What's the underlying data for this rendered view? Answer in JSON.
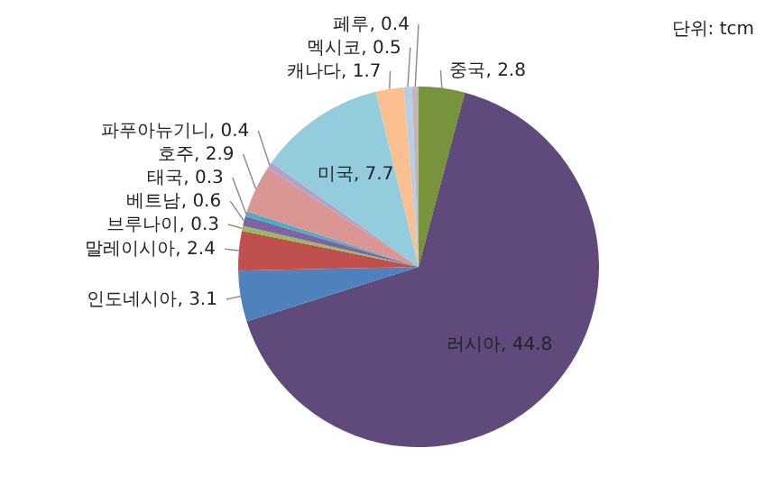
{
  "chart_data": {
    "type": "pie",
    "categories": [
      "중국",
      "러시아",
      "인도네시아",
      "말레이시아",
      "브루나이",
      "베트남",
      "태국",
      "호주",
      "파푸아뉴기니",
      "미국",
      "캐나다",
      "멕시코",
      "페루"
    ],
    "values": [
      2.8,
      44.8,
      3.1,
      2.4,
      0.3,
      0.6,
      0.3,
      2.9,
      0.4,
      7.7,
      1.7,
      0.5,
      0.4
    ],
    "value_labels": [
      ", 2.8",
      ", 44.8",
      ", 3.1",
      ", 2.4",
      ", 0.3",
      ", 0.6",
      ", 0.3",
      ", 2.9",
      ", 0.4",
      ", 7.7",
      ", 1.7",
      ", 0.5",
      ", 0.4"
    ],
    "colors": [
      "#77933c",
      "#604a7b",
      "#4f81bd",
      "#c0504d",
      "#9bbb59",
      "#8064a2",
      "#4bacc6",
      "#d99694",
      "#b3a2c7",
      "#93cddd",
      "#fac090",
      "#b9cde5",
      "#c3b5b5"
    ],
    "annotations": [
      "단위: tcm"
    ]
  }
}
